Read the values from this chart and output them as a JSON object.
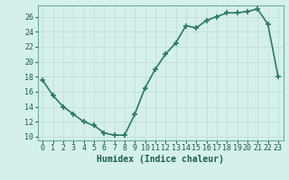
{
  "x": [
    0,
    1,
    2,
    3,
    4,
    5,
    6,
    7,
    8,
    9,
    10,
    11,
    12,
    13,
    14,
    15,
    16,
    17,
    18,
    19,
    20,
    21,
    22,
    23
  ],
  "y": [
    17.5,
    15.5,
    14.0,
    13.0,
    12.0,
    11.5,
    10.5,
    10.2,
    10.2,
    13.0,
    16.5,
    19.0,
    21.0,
    22.5,
    24.8,
    24.5,
    25.5,
    26.0,
    26.5,
    26.5,
    26.7,
    27.0,
    25.0,
    18.0
  ],
  "xlabel": "Humidex (Indice chaleur)",
  "xlim": [
    -0.5,
    23.5
  ],
  "ylim": [
    9.5,
    27.5
  ],
  "xticks": [
    0,
    1,
    2,
    3,
    4,
    5,
    6,
    7,
    8,
    9,
    10,
    11,
    12,
    13,
    14,
    15,
    16,
    17,
    18,
    19,
    20,
    21,
    22,
    23
  ],
  "yticks": [
    10,
    12,
    14,
    16,
    18,
    20,
    22,
    24,
    26
  ],
  "line_color": "#2a7a68",
  "marker": "+",
  "marker_size": 4,
  "marker_linewidth": 1.2,
  "bg_color": "#d5f0eb",
  "grid_color": "#c0ddd8",
  "tick_label_color": "#1a5c50",
  "xlabel_color": "#1a5c50",
  "xlabel_fontsize": 7,
  "tick_fontsize": 6,
  "line_width": 1.2,
  "spine_color": "#6aada0"
}
